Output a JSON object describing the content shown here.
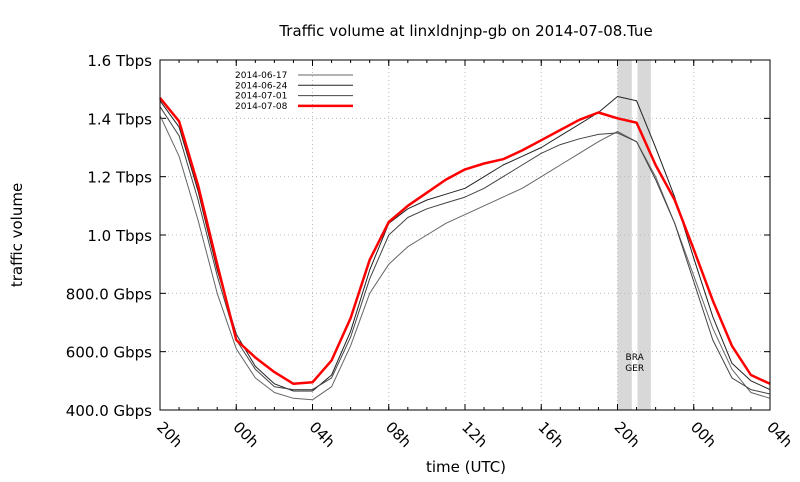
{
  "chart_data": {
    "type": "line",
    "title": "Traffic volume at linxldnjnp-gb on 2014-07-08.Tue",
    "xlabel": "time (UTC)",
    "ylabel": "traffic volume",
    "x_ticks": [
      "20h",
      "00h",
      "04h",
      "08h",
      "12h",
      "16h",
      "20h",
      "00h",
      "04h"
    ],
    "x_hours_since_20h": [
      0,
      1,
      2,
      3,
      4,
      5,
      6,
      7,
      8,
      9,
      10,
      11,
      12,
      13,
      14,
      15,
      16,
      17,
      18,
      19,
      20,
      21,
      22,
      23,
      24,
      25,
      26,
      27,
      28,
      29,
      30,
      31,
      32
    ],
    "xlim_hours": [
      0,
      32
    ],
    "y_ticks": [
      "400.0 Gbps",
      "600.0 Gbps",
      "800.0 Gbps",
      "1.0 Tbps",
      "1.2 Tbps",
      "1.4 Tbps",
      "1.6 Tbps"
    ],
    "y_tick_values_gbps": [
      400,
      600,
      800,
      1000,
      1200,
      1400,
      1600
    ],
    "ylim_gbps": [
      400,
      1600
    ],
    "grid": true,
    "legend_position": "top-left",
    "series": [
      {
        "name": "2014-06-17",
        "color": "#666666",
        "width": 1,
        "values": [
          1410,
          1270,
          1050,
          800,
          610,
          510,
          460,
          440,
          435,
          480,
          620,
          800,
          900,
          960,
          1000,
          1040,
          1070,
          1100,
          1130,
          1160,
          1200,
          1240,
          1280,
          1320,
          1355,
          1320,
          1200,
          1040,
          860,
          680,
          540,
          460,
          440
        ]
      },
      {
        "name": "2014-06-24",
        "color": "#222222",
        "width": 1,
        "values": [
          1460,
          1370,
          1150,
          880,
          660,
          550,
          490,
          465,
          465,
          520,
          670,
          880,
          1040,
          1090,
          1120,
          1140,
          1160,
          1200,
          1240,
          1270,
          1300,
          1340,
          1380,
          1420,
          1475,
          1460,
          1300,
          1130,
          920,
          720,
          560,
          500,
          470
        ]
      },
      {
        "name": "2014-07-01",
        "color": "#444444",
        "width": 1,
        "values": [
          1440,
          1340,
          1120,
          860,
          640,
          540,
          480,
          470,
          470,
          510,
          650,
          850,
          1000,
          1060,
          1090,
          1110,
          1130,
          1160,
          1200,
          1240,
          1280,
          1310,
          1330,
          1345,
          1350,
          1320,
          1190,
          1040,
          840,
          640,
          510,
          470,
          455
        ]
      },
      {
        "name": "2014-07-08",
        "color": "#ff0000",
        "width": 2.5,
        "values": [
          1470,
          1390,
          1170,
          900,
          640,
          580,
          530,
          490,
          495,
          570,
          715,
          915,
          1045,
          1100,
          1145,
          1190,
          1225,
          1245,
          1260,
          1290,
          1325,
          1360,
          1395,
          1420,
          1400,
          1385,
          1240,
          1120,
          950,
          775,
          620,
          520,
          490
        ]
      }
    ],
    "shaded_bands_hours": [
      [
        24.0,
        24.75
      ],
      [
        25.05,
        25.75
      ]
    ],
    "annotation": [
      "BRA",
      "GER"
    ],
    "band_color": "#d8d8d8"
  }
}
